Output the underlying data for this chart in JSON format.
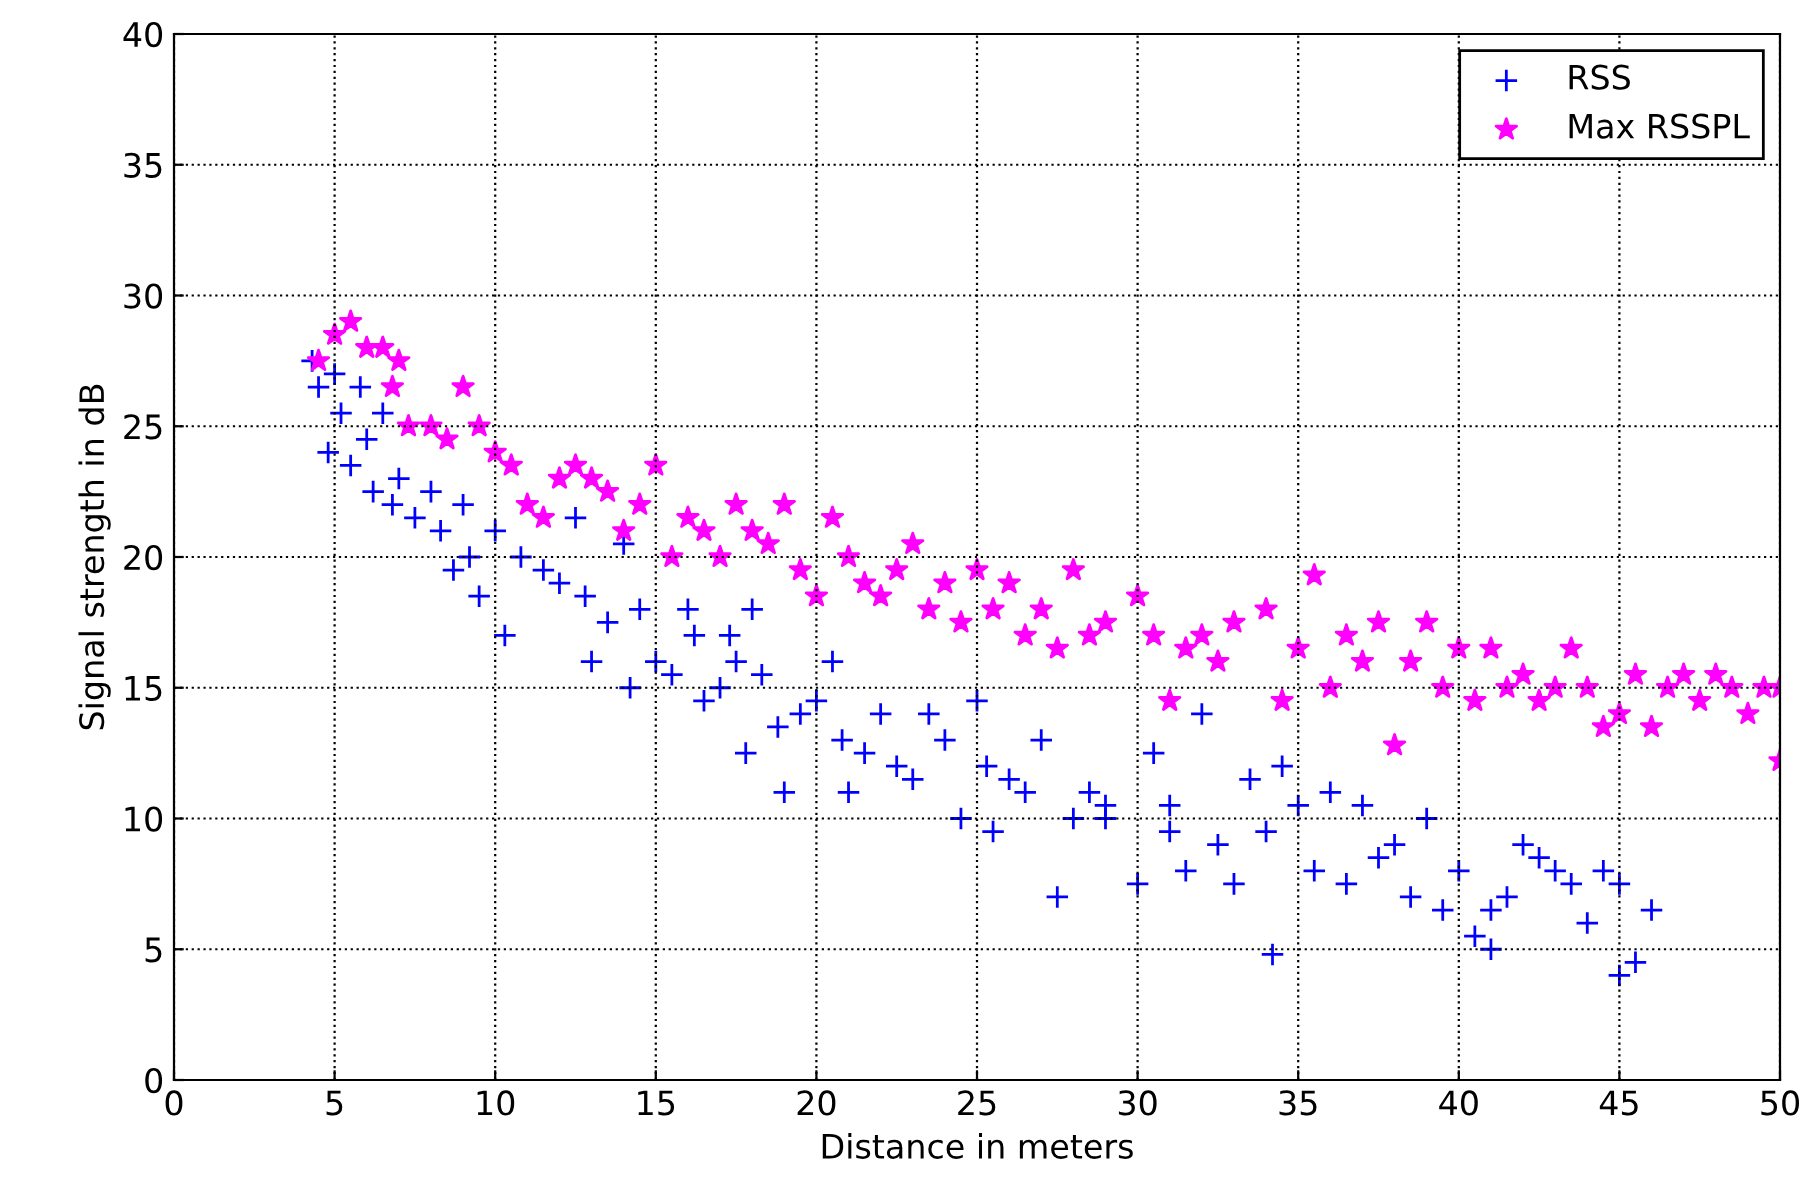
{
  "chart_data": {
    "type": "scatter",
    "xlabel": "Distance in meters",
    "ylabel": "Signal strength in dB",
    "xlim": [
      0,
      50
    ],
    "ylim": [
      0,
      40
    ],
    "xticks": [
      0,
      5,
      10,
      15,
      20,
      25,
      30,
      35,
      40,
      45,
      50
    ],
    "yticks": [
      0,
      5,
      10,
      15,
      20,
      25,
      30,
      35,
      40
    ],
    "grid": true,
    "legend": "top right",
    "series": [
      {
        "name": "RSS",
        "color": "#0000ff",
        "marker": "cross",
        "x": [
          4.3,
          4.5,
          4.8,
          5,
          5.2,
          5.5,
          5.8,
          6,
          6.2,
          6.5,
          6.8,
          7,
          7.5,
          8,
          8.3,
          8.7,
          9,
          9.2,
          9.5,
          10,
          10.3,
          10.8,
          11.5,
          12,
          12.5,
          12.8,
          13,
          13.5,
          14,
          14.2,
          14.5,
          15,
          15.5,
          16,
          16.2,
          16.5,
          17,
          17.3,
          17.5,
          17.8,
          18,
          18.3,
          18.8,
          19,
          19.5,
          20,
          20.5,
          20.8,
          21,
          21.5,
          22,
          22.5,
          23,
          23.5,
          24,
          24.5,
          25,
          25.3,
          25.5,
          26,
          26.5,
          27,
          27.5,
          28,
          28.5,
          29,
          30,
          30.5,
          31,
          31.5,
          32,
          32.5,
          33,
          33.5,
          34,
          34.2,
          34.5,
          35,
          35.5,
          36,
          36.5,
          37,
          37.5,
          38,
          38.5,
          39,
          39.5,
          40,
          40.5,
          41,
          41.5,
          42,
          42.5,
          43,
          43.5,
          44,
          44.5,
          45,
          45.5,
          46,
          41,
          45,
          29,
          31
        ],
        "values": [
          27.5,
          26.5,
          24,
          27,
          25.5,
          23.5,
          26.5,
          24.5,
          22.5,
          25.5,
          22,
          23,
          21.5,
          22.5,
          21,
          19.5,
          22,
          20,
          18.5,
          21,
          17,
          20,
          19.5,
          19,
          21.5,
          18.5,
          16,
          17.5,
          20.5,
          15,
          18,
          16,
          15.5,
          18,
          17,
          14.5,
          15,
          17,
          16,
          12.5,
          18,
          15.5,
          13.5,
          11,
          14,
          14.5,
          16,
          13,
          11,
          12.5,
          14,
          12,
          11.5,
          14,
          13,
          10,
          14.5,
          12,
          9.5,
          11.5,
          11,
          13,
          7,
          10,
          11,
          10,
          7.5,
          12.5,
          10.5,
          8,
          14,
          9,
          7.5,
          11.5,
          9.5,
          4.8,
          12,
          10.5,
          8,
          11,
          7.5,
          10.5,
          8.5,
          9,
          7,
          10,
          6.5,
          8,
          5.5,
          6.5,
          7,
          9,
          8.5,
          8,
          7.5,
          6,
          8,
          4,
          4.5,
          6.5,
          5,
          7.5,
          10.5,
          9.5
        ]
      },
      {
        "name": "Max RSSPL",
        "color": "#ff00ff",
        "marker": "star",
        "x": [
          4.5,
          5,
          5.5,
          6,
          6.5,
          7,
          6.8,
          7.3,
          8,
          8.5,
          9,
          9.5,
          10,
          10.5,
          11,
          11.5,
          12,
          12.5,
          13,
          13.5,
          14,
          14.5,
          15,
          15.5,
          16,
          16.5,
          17,
          17.5,
          18,
          18.5,
          19,
          19.5,
          20,
          20.5,
          21,
          21.5,
          22,
          22.5,
          23,
          23.5,
          24,
          24.5,
          25,
          25.5,
          26,
          26.5,
          27,
          27.5,
          28,
          28.5,
          29,
          30,
          30.5,
          31,
          31.5,
          32,
          32.5,
          33,
          34,
          34.5,
          35,
          35.5,
          36,
          36.5,
          37,
          37.5,
          38,
          38.5,
          39,
          39.5,
          40,
          40.5,
          41,
          41.5,
          42,
          42.5,
          43,
          43.5,
          44,
          44.5,
          45,
          45.5,
          46,
          46.5,
          47,
          47.5,
          48,
          48.5,
          49,
          49.5,
          50,
          50
        ],
        "values": [
          27.5,
          28.5,
          29,
          28,
          28,
          27.5,
          26.5,
          25,
          25,
          24.5,
          26.5,
          25,
          24,
          23.5,
          22,
          21.5,
          23,
          23.5,
          23,
          22.5,
          21,
          22,
          23.5,
          20,
          21.5,
          21,
          20,
          22,
          21,
          20.5,
          22,
          19.5,
          18.5,
          21.5,
          20,
          19,
          18.5,
          19.5,
          20.5,
          18,
          19,
          17.5,
          19.5,
          18,
          19,
          17,
          18,
          16.5,
          19.5,
          17,
          17.5,
          18.5,
          17,
          14.5,
          16.5,
          17,
          16,
          17.5,
          18,
          14.5,
          16.5,
          19.3,
          15,
          17,
          16,
          17.5,
          12.8,
          16,
          17.5,
          15,
          16.5,
          14.5,
          16.5,
          15,
          15.5,
          14.5,
          15,
          16.5,
          15,
          13.5,
          14,
          15.5,
          13.5,
          15,
          15.5,
          14.5,
          15.5,
          15,
          14,
          15,
          12.2,
          15
        ]
      }
    ]
  }
}
